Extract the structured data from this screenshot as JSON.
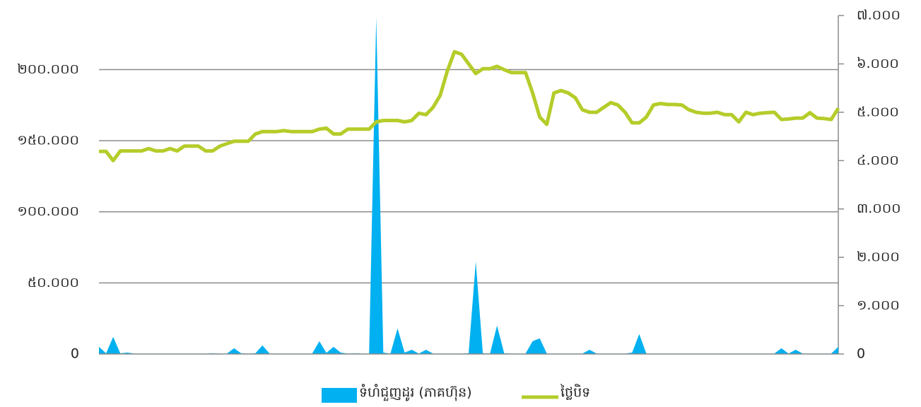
{
  "chart_data": {
    "type": "area-line",
    "series": [
      {
        "name": "ទំហំជួញដូរ (ភាគហ៊ុន)",
        "color": "#00b0f0",
        "type": "area",
        "axis": "y",
        "values": [
          5000,
          500,
          12000,
          500,
          1000,
          300,
          300,
          300,
          300,
          300,
          300,
          300,
          300,
          300,
          300,
          300,
          500,
          300,
          300,
          4000,
          500,
          300,
          500,
          6000,
          300,
          300,
          300,
          300,
          300,
          300,
          300,
          9000,
          800,
          5000,
          1000,
          300,
          500,
          300,
          300,
          237000,
          1000,
          300,
          18000,
          1000,
          3000,
          300,
          3000,
          300,
          300,
          300,
          300,
          300,
          500,
          65000,
          500,
          300,
          20000,
          500,
          300,
          300,
          300,
          9000,
          11000,
          300,
          300,
          300,
          300,
          300,
          300,
          3000,
          300,
          300,
          300,
          300,
          300,
          1000,
          14000,
          300,
          300,
          300,
          300,
          300,
          300,
          300,
          300,
          300,
          300,
          300,
          300,
          300,
          300,
          300,
          300,
          300,
          300,
          300,
          4000,
          300,
          3000,
          300,
          300,
          300,
          300,
          300,
          5000
        ]
      },
      {
        "name": "ថ្លៃបិទ",
        "color": "#b5cc2a",
        "type": "line",
        "axis": "y2",
        "values": [
          4190,
          4190,
          4000,
          4200,
          4200,
          4200,
          4200,
          4250,
          4200,
          4200,
          4250,
          4200,
          4300,
          4300,
          4300,
          4200,
          4200,
          4300,
          4350,
          4400,
          4400,
          4400,
          4550,
          4600,
          4600,
          4600,
          4620,
          4600,
          4600,
          4600,
          4600,
          4650,
          4670,
          4550,
          4550,
          4650,
          4650,
          4650,
          4650,
          4800,
          4830,
          4830,
          4830,
          4800,
          4830,
          4980,
          4950,
          5100,
          5350,
          5850,
          6250,
          6200,
          6000,
          5800,
          5900,
          5900,
          5950,
          5880,
          5820,
          5820,
          5820,
          5400,
          4900,
          4750,
          5400,
          5450,
          5400,
          5300,
          5050,
          5000,
          5000,
          5100,
          5200,
          5150,
          5000,
          4780,
          4780,
          4900,
          5150,
          5180,
          5160,
          5160,
          5150,
          5050,
          5000,
          4980,
          4980,
          5000,
          4950,
          4950,
          4800,
          5000,
          4950,
          4980,
          4990,
          5000,
          4850,
          4860,
          4880,
          4880,
          4990,
          4880,
          4870,
          4850,
          5080
        ]
      }
    ],
    "ylim": [
      0,
      238000
    ],
    "yticks": [
      0,
      {
        "value": 50000,
        "label": "៥០.០០០"
      },
      {
        "value": 100000,
        "label": "១០០.០០០"
      },
      {
        "value": 150000,
        "label": "១៥០.០០០"
      },
      {
        "value": 200000,
        "label": "២០០.០០០"
      }
    ],
    "y2lim": [
      0,
      7000
    ],
    "y2ticks": [
      0,
      {
        "value": 1000,
        "label": "១.០០០"
      },
      {
        "value": 2000,
        "label": "២.០០០"
      },
      {
        "value": 3000,
        "label": "៣.០០០"
      },
      {
        "value": 4000,
        "label": "៤.០០០"
      },
      {
        "value": 5000,
        "label": "៥.០០០"
      },
      {
        "value": 6000,
        "label": "៦.០០០"
      },
      {
        "value": 7000,
        "label": "៧.០០០"
      }
    ],
    "grid": true,
    "legend": "bottom"
  }
}
